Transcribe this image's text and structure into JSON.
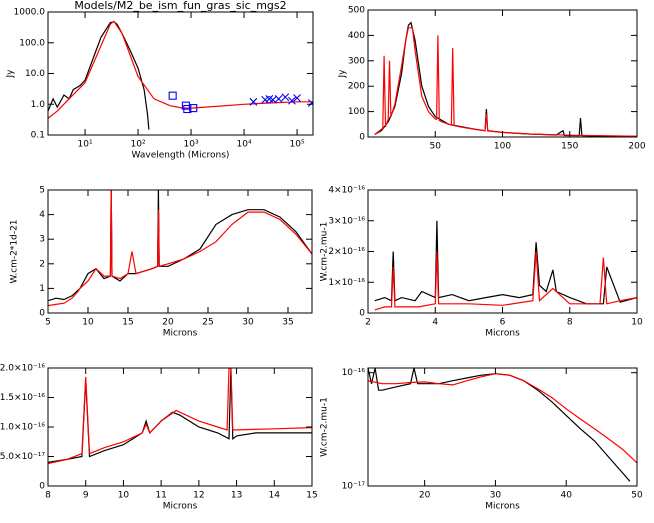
{
  "chart_data": [
    {
      "type": "line",
      "title": "Models/M2_be_ism_fun_gras_sic_mgs2",
      "x_label": "Wavelength (Microns)",
      "y_label": "Jy",
      "xlog": true,
      "ylog": true,
      "xlim": [
        2,
        200000
      ],
      "ylim": [
        0.1,
        1000
      ],
      "xticks": [
        {
          "value": 10,
          "label": "10¹"
        },
        {
          "value": 100,
          "label": "10²"
        },
        {
          "value": 1000,
          "label": "10³"
        },
        {
          "value": 10000,
          "label": "10⁴"
        },
        {
          "value": 100000,
          "label": "10⁵"
        }
      ],
      "yticks": [
        0.1,
        {
          "value": 1,
          "label": "1.0"
        },
        {
          "value": 10,
          "label": "10.0"
        },
        {
          "value": 100,
          "label": "100.0"
        },
        {
          "value": 1000,
          "label": "1000.0"
        }
      ],
      "series": [
        {
          "color": "#000000",
          "marker": "line",
          "x": [
            2,
            2.5,
            3,
            4,
            5,
            6,
            8,
            10,
            15,
            20,
            30,
            35,
            40,
            50,
            70,
            100,
            130,
            150,
            160
          ],
          "values": [
            0.6,
            1.5,
            0.8,
            2,
            1.5,
            3,
            4,
            6,
            40,
            150,
            450,
            480,
            400,
            200,
            60,
            15,
            3,
            0.5,
            0.15
          ]
        },
        {
          "color": "#ff0000",
          "marker": "line",
          "x": [
            2,
            3,
            5,
            10,
            20,
            30,
            35,
            50,
            100,
            200,
            400,
            700,
            1000,
            3000,
            10000,
            30000,
            100000,
            200000
          ],
          "values": [
            0.35,
            0.6,
            1.5,
            5,
            80,
            400,
            500,
            200,
            8,
            1.5,
            0.9,
            0.75,
            0.75,
            0.85,
            1.0,
            1.1,
            1.2,
            1.2
          ]
        },
        {
          "color": "#0000ff",
          "marker": "square",
          "x": [
            450,
            800,
            850,
            1100
          ],
          "values": [
            1.9,
            0.9,
            0.7,
            0.75
          ]
        },
        {
          "color": "#0000ff",
          "marker": "cross",
          "x": [
            15000,
            25000,
            30000,
            35000,
            45000,
            60000,
            80000,
            100000,
            190000
          ],
          "values": [
            1.2,
            1.4,
            1.5,
            1.4,
            1.5,
            1.7,
            1.3,
            1.6,
            1.1
          ]
        }
      ]
    },
    {
      "type": "line",
      "y_label": "Jy",
      "xlim": [
        0,
        200
      ],
      "ylim": [
        0,
        500
      ],
      "xticks": [
        50,
        100,
        150,
        200
      ],
      "yticks": [
        0,
        100,
        200,
        300,
        400,
        500
      ],
      "series": [
        {
          "color": "#000000",
          "marker": "line",
          "x": [
            5,
            10,
            15,
            20,
            25,
            28,
            30,
            32,
            35,
            40,
            45,
            50,
            60,
            70,
            80,
            87,
            88,
            89,
            100,
            120,
            140,
            145,
            146,
            150,
            157,
            158,
            159,
            170,
            200
          ],
          "values": [
            10,
            25,
            60,
            120,
            250,
            380,
            440,
            450,
            380,
            200,
            120,
            80,
            50,
            40,
            30,
            25,
            110,
            25,
            18,
            12,
            8,
            25,
            6,
            6,
            5,
            75,
            5,
            4,
            2
          ]
        },
        {
          "color": "#ff0000",
          "marker": "line",
          "x": [
            5,
            10,
            11,
            12,
            13,
            15,
            16,
            17,
            20,
            25,
            28,
            30,
            33,
            35,
            40,
            45,
            50,
            51,
            52,
            53,
            55,
            60,
            62,
            63,
            64,
            70,
            80,
            87,
            88,
            89,
            100,
            120,
            150,
            200
          ],
          "values": [
            10,
            30,
            35,
            320,
            40,
            70,
            300,
            80,
            130,
            280,
            380,
            430,
            430,
            340,
            160,
            100,
            70,
            70,
            400,
            65,
            60,
            50,
            48,
            350,
            45,
            38,
            30,
            25,
            90,
            24,
            18,
            12,
            7,
            3
          ]
        }
      ]
    },
    {
      "type": "line",
      "x_label": "Microns",
      "y_label": "W.cm-2*1d-21",
      "xlim": [
        5,
        38
      ],
      "ylim": [
        0,
        5
      ],
      "xticks": [
        5,
        10,
        15,
        20,
        25,
        30,
        35
      ],
      "yticks": [
        0,
        1,
        2,
        3,
        4,
        5
      ],
      "series": [
        {
          "color": "#000000",
          "marker": "line",
          "x": [
            5,
            6,
            7,
            8,
            9,
            10,
            11,
            12,
            12.8,
            12.9,
            13,
            14,
            15,
            16,
            18,
            18.7,
            18.8,
            18.9,
            20,
            22,
            24,
            26,
            28,
            30,
            32,
            34,
            36,
            38
          ],
          "values": [
            0.5,
            0.6,
            0.55,
            0.7,
            1.0,
            1.6,
            1.8,
            1.4,
            1.5,
            5.1,
            1.5,
            1.3,
            1.6,
            1.6,
            1.8,
            1.9,
            5.1,
            1.9,
            1.9,
            2.2,
            2.6,
            3.6,
            4.0,
            4.2,
            4.2,
            3.9,
            3.3,
            2.4
          ]
        },
        {
          "color": "#ff0000",
          "marker": "line",
          "x": [
            5,
            6,
            7,
            8,
            8.8,
            9,
            10,
            11,
            12,
            12.8,
            12.9,
            13,
            14,
            15,
            15.5,
            16,
            18,
            18.7,
            18.8,
            18.9,
            20,
            22,
            24,
            26,
            28,
            30,
            32,
            34,
            36,
            38
          ],
          "values": [
            0.3,
            0.35,
            0.4,
            0.6,
            0.9,
            1.0,
            1.3,
            1.8,
            1.5,
            1.5,
            5.1,
            1.5,
            1.4,
            1.6,
            2.5,
            1.6,
            1.8,
            1.9,
            4.2,
            1.9,
            2.0,
            2.2,
            2.5,
            2.9,
            3.6,
            4.1,
            4.1,
            3.8,
            3.2,
            2.4
          ]
        }
      ]
    },
    {
      "type": "line",
      "x_label": "Microns",
      "y_label": "W.cm-2.mu-1",
      "xlim": [
        2,
        10
      ],
      "ylim": [
        0,
        4e-16
      ],
      "xticks": [
        2,
        4,
        6,
        8,
        10
      ],
      "yticks": [
        0,
        {
          "value": 1e-16,
          "label": "1×10⁻¹⁶"
        },
        {
          "value": 2e-16,
          "label": "2×10⁻¹⁶"
        },
        {
          "value": 3e-16,
          "label": "3×10⁻¹⁶"
        },
        {
          "value": 4e-16,
          "label": "4×10⁻¹⁶"
        }
      ],
      "series": [
        {
          "color": "#000000",
          "marker": "line",
          "x": [
            2.2,
            2.5,
            2.7,
            2.75,
            2.8,
            3,
            3.4,
            3.6,
            4,
            4.05,
            4.1,
            4.5,
            5,
            5.5,
            6,
            6.5,
            6.9,
            7,
            7.1,
            7.3,
            7.5,
            7.6,
            8,
            8.5,
            9,
            9.1,
            9.5,
            10
          ],
          "values": [
            4e-17,
            5e-17,
            4e-17,
            2e-16,
            4e-17,
            5e-17,
            4e-17,
            7e-17,
            5e-17,
            3e-16,
            5e-17,
            6e-17,
            4e-17,
            5e-17,
            6e-17,
            5e-17,
            6e-17,
            2.3e-16,
            9e-17,
            7e-17,
            1.4e-16,
            7e-17,
            5e-17,
            3e-17,
            3e-17,
            1.5e-16,
            3.5e-17,
            5e-17
          ]
        },
        {
          "color": "#ff0000",
          "marker": "line",
          "x": [
            2.2,
            2.5,
            2.7,
            2.75,
            2.8,
            3,
            3.5,
            4,
            4.05,
            4.1,
            5,
            6,
            6.9,
            7,
            7.1,
            7.5,
            8,
            8.9,
            9,
            9.1,
            9.5,
            10
          ],
          "values": [
            1e-17,
            2e-17,
            2e-17,
            1.5e-16,
            2e-17,
            2e-17,
            2e-17,
            3e-17,
            2e-16,
            3e-17,
            3e-17,
            2.5e-17,
            4e-17,
            2e-16,
            4e-17,
            8e-17,
            3e-17,
            3e-17,
            1.8e-16,
            3e-17,
            4e-17,
            5e-17
          ]
        }
      ]
    },
    {
      "type": "line",
      "x_label": "Microns",
      "xlim": [
        8,
        15
      ],
      "ylim": [
        0,
        2e-16
      ],
      "xticks": [
        8,
        9,
        10,
        11,
        12,
        13,
        14,
        15
      ],
      "yticks": [
        0,
        {
          "value": 5e-17,
          "label": "5.0×10⁻¹⁷"
        },
        {
          "value": 1e-16,
          "label": "1.0×10⁻¹⁶"
        },
        {
          "value": 1.5e-16,
          "label": "1.5×10⁻¹⁶"
        },
        {
          "value": 2e-16,
          "label": "2.0×10⁻¹⁶"
        }
      ],
      "series": [
        {
          "color": "#000000",
          "marker": "line",
          "x": [
            8,
            8.5,
            8.9,
            9.0,
            9.1,
            9.5,
            10,
            10.5,
            10.6,
            10.7,
            11,
            11.3,
            11.5,
            12,
            12.5,
            12.8,
            12.85,
            12.9,
            13,
            13.5,
            14,
            14.5,
            15
          ],
          "values": [
            4e-17,
            4.5e-17,
            5e-17,
            1.8e-16,
            5e-17,
            6e-17,
            7e-17,
            9e-17,
            1.1e-16,
            9e-17,
            1.1e-16,
            1.25e-16,
            1.2e-16,
            1e-16,
            9e-17,
            8e-17,
            2e-16,
            8e-17,
            8.5e-17,
            9e-17,
            9e-17,
            9e-17,
            9e-17
          ]
        },
        {
          "color": "#ff0000",
          "marker": "line",
          "x": [
            8,
            8.5,
            8.9,
            9.0,
            9.1,
            9.5,
            10,
            10.5,
            10.6,
            10.7,
            11,
            11.4,
            12,
            12.5,
            12.75,
            12.8,
            12.85,
            12.9,
            13,
            14,
            15
          ],
          "values": [
            3.8e-17,
            4.5e-17,
            5.5e-17,
            1.85e-16,
            5.5e-17,
            6.5e-17,
            7.5e-17,
            9e-17,
            1.05e-16,
            9e-17,
            1.1e-16,
            1.28e-16,
            1.1e-16,
            1e-16,
            9.5e-17,
            2e-16,
            2e-16,
            9.5e-17,
            9.5e-17,
            9.7e-17,
            9.9e-17
          ]
        }
      ]
    },
    {
      "type": "line",
      "x_label": "Microns",
      "y_label": "W.cm-2.mu-1",
      "ylog": true,
      "xlim": [
        12,
        50
      ],
      "ylim": [
        1e-17,
        1.1e-16
      ],
      "xticks": [
        20,
        30,
        40,
        50
      ],
      "yticks": [
        {
          "value": 1e-17,
          "label": "10⁻¹⁷"
        },
        {
          "value": 1e-16,
          "label": "10⁻¹⁶"
        }
      ],
      "series": [
        {
          "color": "#000000",
          "marker": "line",
          "x": [
            12,
            12.5,
            13,
            13.5,
            14,
            16,
            18,
            18.5,
            19,
            20,
            22,
            24,
            26,
            28,
            30,
            32,
            34,
            36,
            38,
            40,
            42,
            44,
            46,
            48,
            49
          ],
          "values": [
            1.1e-16,
            8e-17,
            1.1e-16,
            7e-17,
            7e-17,
            7.5e-17,
            8e-17,
            1.1e-16,
            8e-17,
            8e-17,
            8e-17,
            8.5e-17,
            9e-17,
            9.5e-17,
            9.8e-17,
            9.5e-17,
            8.5e-17,
            7e-17,
            5.5e-17,
            4.2e-17,
            3.2e-17,
            2.5e-17,
            1.8e-17,
            1.3e-17,
            1.1e-17
          ]
        },
        {
          "color": "#ff0000",
          "marker": "line",
          "x": [
            12,
            14,
            16,
            18,
            20,
            22,
            24,
            26,
            28,
            30,
            32,
            34,
            36,
            38,
            40,
            42,
            44,
            46,
            48,
            50
          ],
          "values": [
            8.5e-17,
            8e-17,
            8e-17,
            8.2e-17,
            8.3e-17,
            8e-17,
            7.8e-17,
            8.5e-17,
            9.2e-17,
            9.8e-17,
            9.5e-17,
            8.5e-17,
            7.2e-17,
            6e-17,
            4.8e-17,
            3.9e-17,
            3.2e-17,
            2.6e-17,
            2.1e-17,
            1.6e-17
          ]
        }
      ]
    }
  ]
}
